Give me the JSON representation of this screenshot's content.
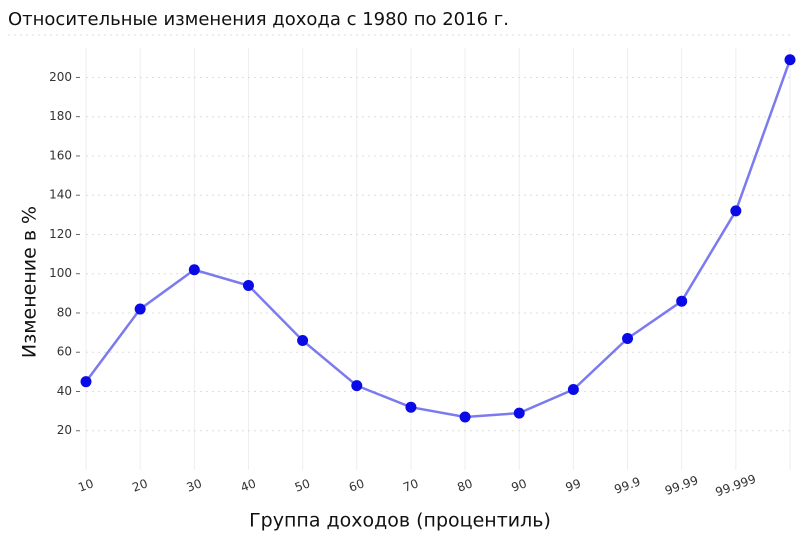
{
  "chart_data": {
    "type": "line",
    "title": "Относительные изменения дохода с 1980 по 2016 г.",
    "x_label": "Группа доходов (процентиль)",
    "y_label": "Изменение в %",
    "categories": [
      "10",
      "20",
      "30",
      "40",
      "50",
      "60",
      "70",
      "80",
      "90",
      "99",
      "99.9",
      "99.99",
      "99.999",
      null
    ],
    "series": [
      {
        "name": "Изменение в %",
        "color": "#7b7bef",
        "marker_color": "#0a0ae6",
        "values": [
          45,
          82,
          102,
          94,
          66,
          43,
          32,
          27,
          29,
          41,
          67,
          86,
          132,
          209
        ]
      }
    ],
    "ylim": [
      0,
      215
    ],
    "yticks": [
      20,
      40,
      60,
      80,
      100,
      120,
      140,
      160,
      180,
      200
    ],
    "grid": true
  }
}
